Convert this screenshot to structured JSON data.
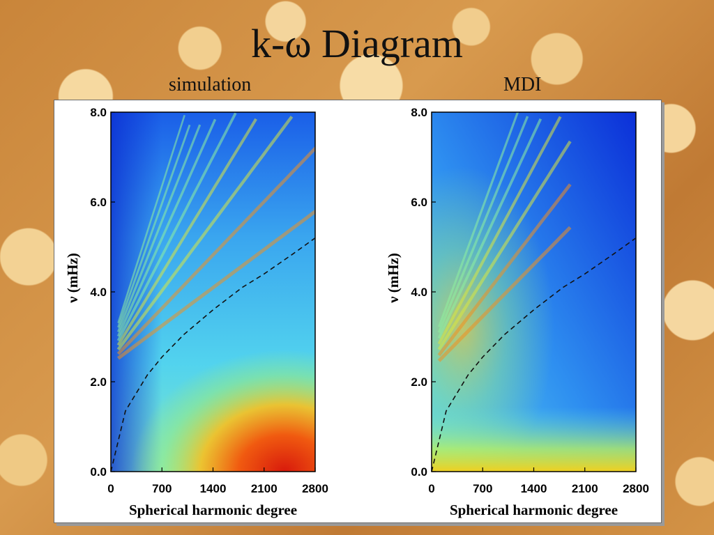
{
  "slide": {
    "title": "k-ω Diagram",
    "left_label": "simulation",
    "right_label": "MDI"
  },
  "chart_data": [
    {
      "type": "heatmap",
      "title": "simulation",
      "xlabel": "Spherical harmonic degree",
      "ylabel": "ν (mHz)",
      "xlim": [
        0,
        2800
      ],
      "ylim": [
        0,
        8.0
      ],
      "x_ticks": [
        "0",
        "700",
        "1400",
        "2100",
        "2800"
      ],
      "y_ticks": [
        "0.0",
        "2.0",
        "4.0",
        "6.0",
        "8.0"
      ],
      "colormap": "jet",
      "dashed_curve": {
        "name": "",
        "x": [
          0,
          200,
          500,
          700,
          1000,
          1400,
          1800,
          2100,
          2500,
          2800
        ],
        "y": [
          0,
          1.35,
          2.15,
          2.55,
          3.05,
          3.6,
          4.1,
          4.4,
          4.85,
          5.2
        ]
      }
    },
    {
      "type": "heatmap",
      "title": "MDI",
      "xlabel": "Spherical harmonic degree",
      "ylabel": "ν (mHz)",
      "xlim": [
        0,
        2800
      ],
      "ylim": [
        0,
        8.0
      ],
      "x_ticks": [
        "0",
        "700",
        "1400",
        "2100",
        "2800"
      ],
      "y_ticks": [
        "0.0",
        "2.0",
        "4.0",
        "6.0",
        "8.0"
      ],
      "colormap": "jet",
      "dashed_curve": {
        "name": "",
        "x": [
          0,
          200,
          500,
          700,
          1000,
          1400,
          1800,
          2100,
          2500,
          2800
        ],
        "y": [
          0,
          1.35,
          2.15,
          2.55,
          3.05,
          3.6,
          4.1,
          4.4,
          4.85,
          5.2
        ]
      }
    }
  ]
}
